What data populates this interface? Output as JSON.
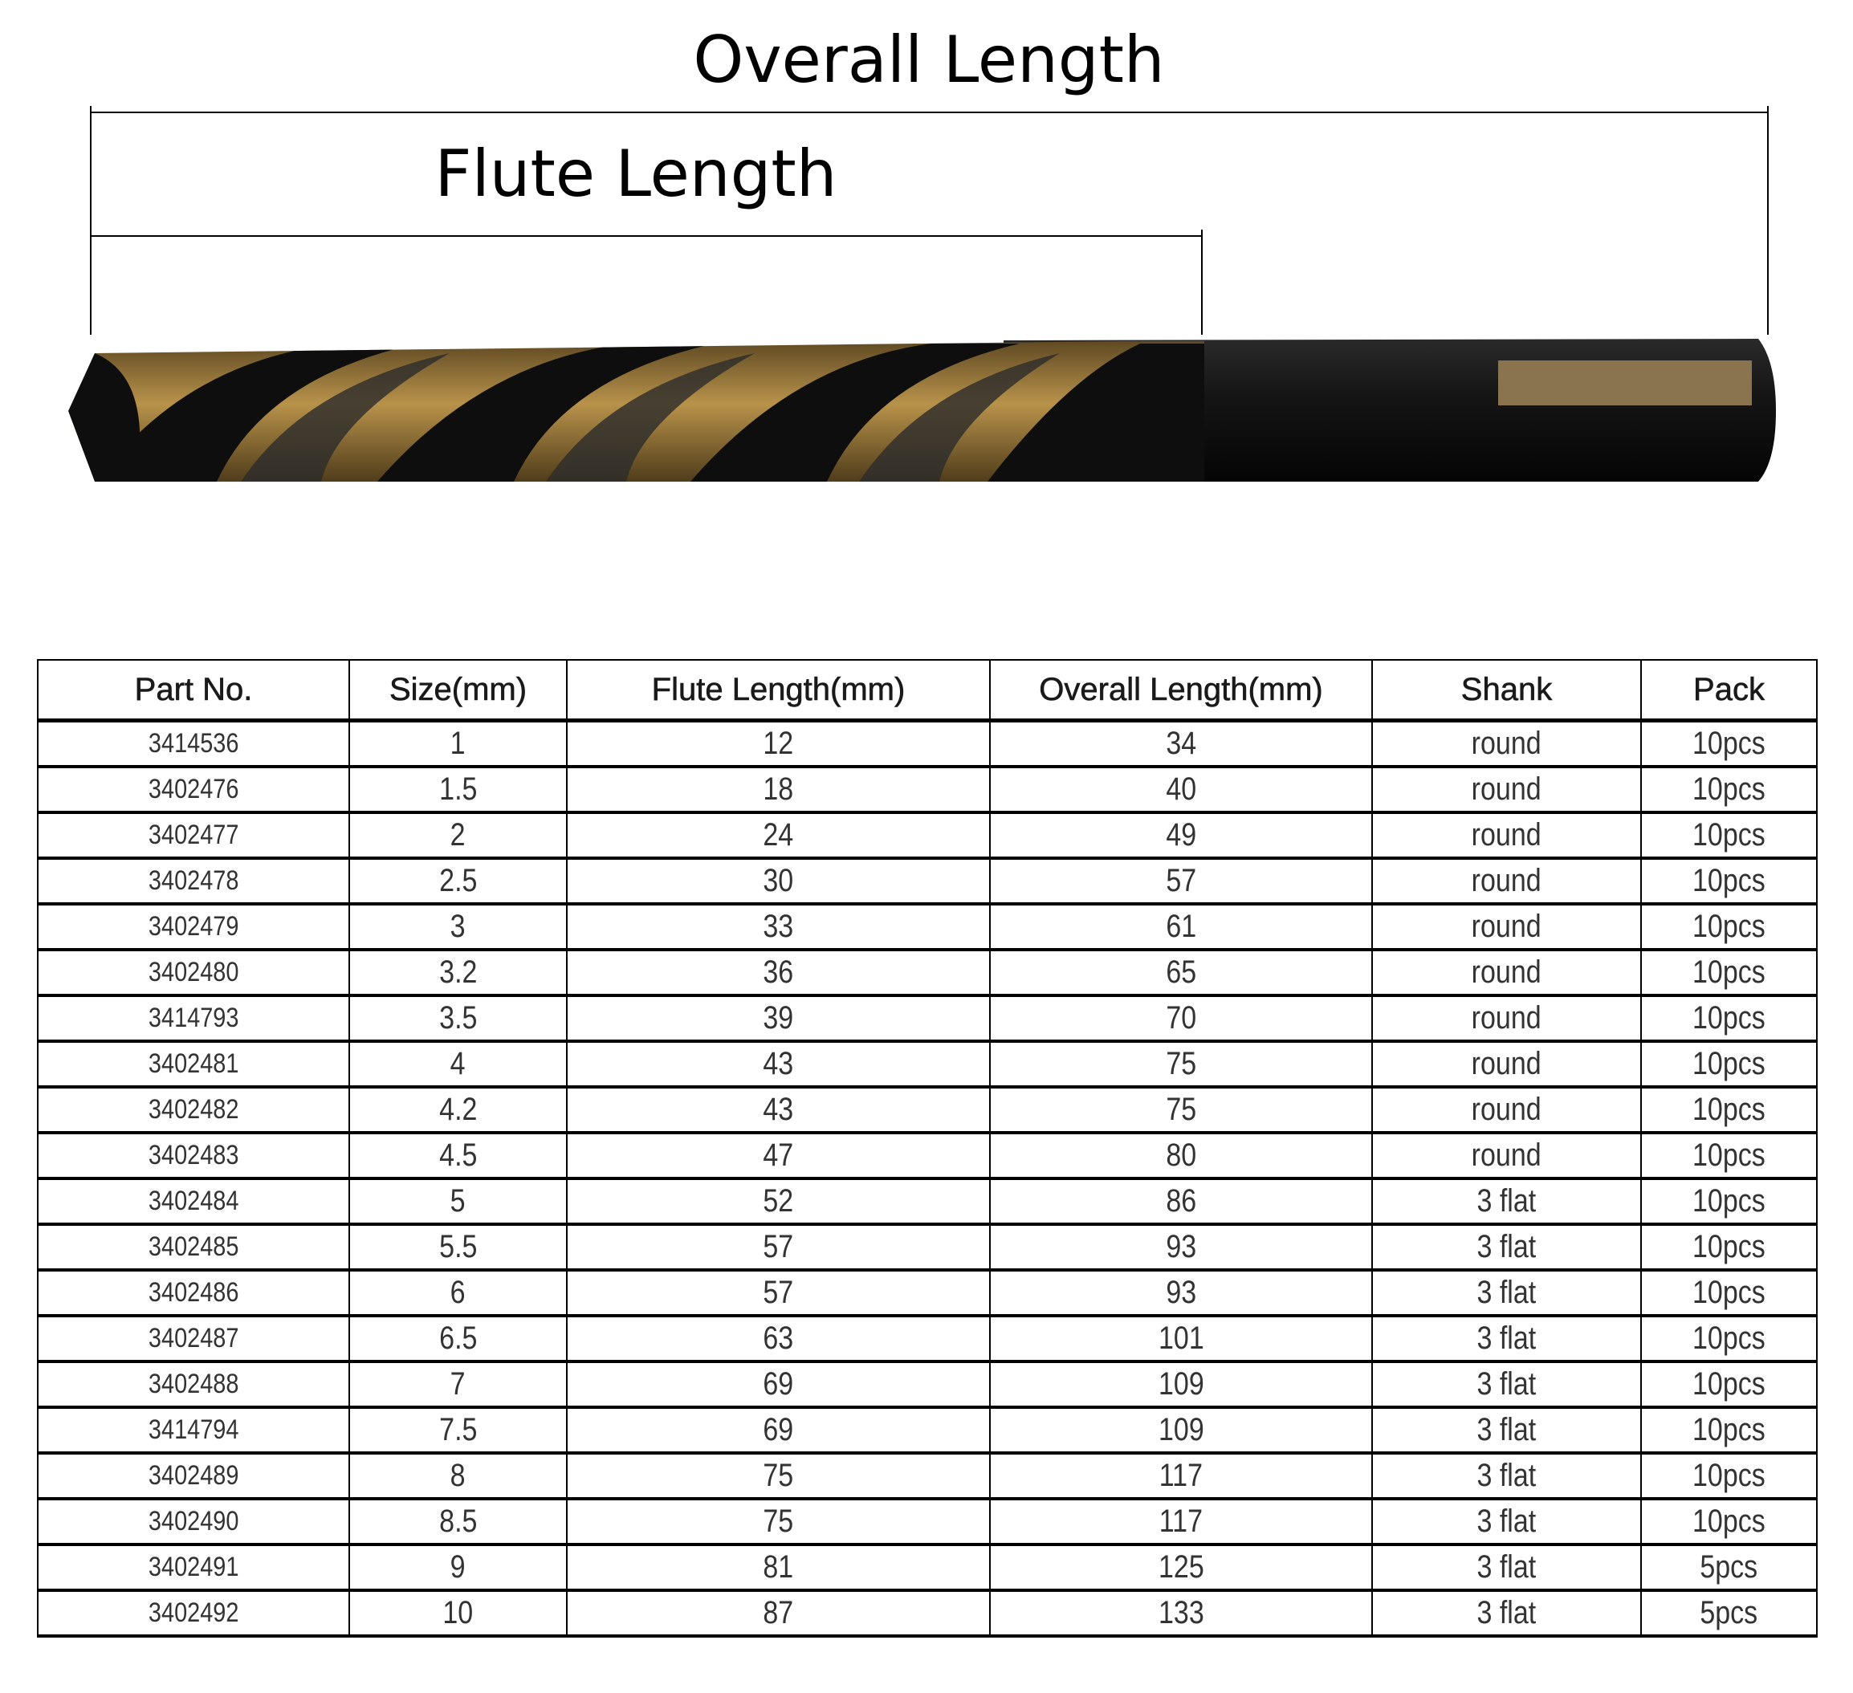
{
  "diagram": {
    "overall_length_label": "Overall Length",
    "flute_length_label": "Flute Length",
    "colors": {
      "gold": "#9a7a3a",
      "black": "#141414",
      "line": "#000000"
    }
  },
  "table": {
    "headers": [
      "Part No.",
      "Size(mm)",
      "Flute Length(mm)",
      "Overall Length(mm)",
      "Shank",
      "Pack"
    ],
    "rows": [
      [
        "3414536",
        "1",
        "12",
        "34",
        "round",
        "10pcs"
      ],
      [
        "3402476",
        "1.5",
        "18",
        "40",
        "round",
        "10pcs"
      ],
      [
        "3402477",
        "2",
        "24",
        "49",
        "round",
        "10pcs"
      ],
      [
        "3402478",
        "2.5",
        "30",
        "57",
        "round",
        "10pcs"
      ],
      [
        "3402479",
        "3",
        "33",
        "61",
        "round",
        "10pcs"
      ],
      [
        "3402480",
        "3.2",
        "36",
        "65",
        "round",
        "10pcs"
      ],
      [
        "3414793",
        "3.5",
        "39",
        "70",
        "round",
        "10pcs"
      ],
      [
        "3402481",
        "4",
        "43",
        "75",
        "round",
        "10pcs"
      ],
      [
        "3402482",
        "4.2",
        "43",
        "75",
        "round",
        "10pcs"
      ],
      [
        "3402483",
        "4.5",
        "47",
        "80",
        "round",
        "10pcs"
      ],
      [
        "3402484",
        "5",
        "52",
        "86",
        "3 flat",
        "10pcs"
      ],
      [
        "3402485",
        "5.5",
        "57",
        "93",
        "3 flat",
        "10pcs"
      ],
      [
        "3402486",
        "6",
        "57",
        "93",
        "3 flat",
        "10pcs"
      ],
      [
        "3402487",
        "6.5",
        "63",
        "101",
        "3 flat",
        "10pcs"
      ],
      [
        "3402488",
        "7",
        "69",
        "109",
        "3 flat",
        "10pcs"
      ],
      [
        "3414794",
        "7.5",
        "69",
        "109",
        "3 flat",
        "10pcs"
      ],
      [
        "3402489",
        "8",
        "75",
        "117",
        "3 flat",
        "10pcs"
      ],
      [
        "3402490",
        "8.5",
        "75",
        "117",
        "3 flat",
        "10pcs"
      ],
      [
        "3402491",
        "9",
        "81",
        "125",
        "3 flat",
        "5pcs"
      ],
      [
        "3402492",
        "10",
        "87",
        "133",
        "3 flat",
        "5pcs"
      ]
    ]
  }
}
